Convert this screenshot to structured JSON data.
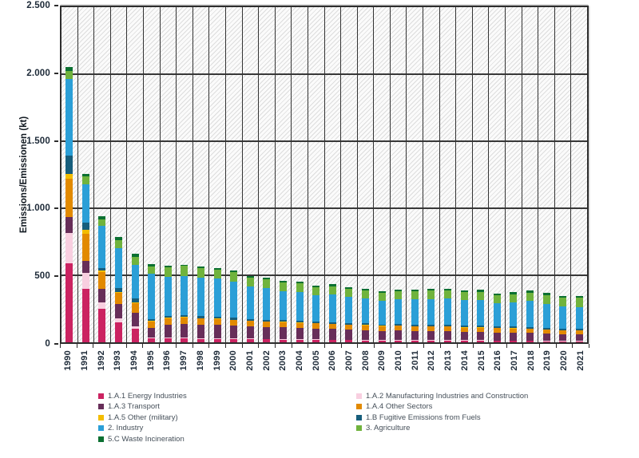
{
  "chart_data": {
    "type": "bar",
    "stacked": true,
    "title": "",
    "xlabel": "",
    "ylabel": "Emissions/Emissionen (kt)",
    "ylim": [
      0,
      2500
    ],
    "grid": "horizontal gridlines every 500 kt, vertical separator line per year, hatched plot background",
    "legend_position": "bottom, two columns",
    "yticks": [
      {
        "label": "0",
        "value": 0
      },
      {
        "label": "500",
        "value": 500
      },
      {
        "label": "1.000",
        "value": 1000
      },
      {
        "label": "1.500",
        "value": 1500
      },
      {
        "label": "2.000",
        "value": 2000
      },
      {
        "label": "2.500",
        "value": 2500
      }
    ],
    "categories": [
      "1990",
      "1991",
      "1992",
      "1993",
      "1994",
      "1995",
      "1996",
      "1997",
      "1998",
      "1999",
      "2000",
      "2001",
      "2002",
      "2003",
      "2004",
      "2005",
      "2006",
      "2007",
      "2008",
      "2009",
      "2010",
      "2011",
      "2012",
      "2013",
      "2014",
      "2015",
      "2016",
      "2017",
      "2018",
      "2019",
      "2020",
      "2021"
    ],
    "series": [
      {
        "name": "1.A.1 Energy Industries",
        "color": "#cb2361",
        "values": [
          588,
          400,
          250,
          147,
          100,
          32,
          30,
          28,
          26,
          25,
          24,
          22,
          21,
          20,
          18,
          17,
          16,
          15,
          14,
          13,
          13,
          12,
          12,
          12,
          11,
          11,
          10,
          10,
          10,
          9,
          8,
          8
        ]
      },
      {
        "name": "1.A.2 Manufacturing Industries and Construction",
        "color": "#f8cfe0",
        "values": [
          226,
          118,
          45,
          29,
          20,
          6,
          7,
          6,
          6,
          6,
          5,
          5,
          5,
          5,
          5,
          4,
          4,
          4,
          4,
          3,
          4,
          4,
          4,
          4,
          4,
          4,
          4,
          4,
          4,
          3,
          3,
          3
        ]
      },
      {
        "name": "1.A.3 Transport",
        "color": "#672e59",
        "values": [
          118,
          88,
          105,
          109,
          100,
          72,
          95,
          105,
          100,
          98,
          95,
          90,
          88,
          86,
          84,
          82,
          80,
          76,
          74,
          70,
          70,
          68,
          66,
          65,
          62,
          62,
          60,
          58,
          56,
          52,
          48,
          48
        ]
      },
      {
        "name": "1.A.4 Other Sectors",
        "color": "#e28a00",
        "values": [
          290,
          206,
          125,
          82,
          70,
          46,
          48,
          48,
          46,
          45,
          43,
          42,
          41,
          40,
          39,
          38,
          37,
          35,
          36,
          36,
          37,
          35,
          35,
          36,
          33,
          33,
          32,
          32,
          31,
          31,
          30,
          30
        ]
      },
      {
        "name": "1.A.5 Other (military)",
        "color": "#f3bd00",
        "values": [
          33,
          25,
          8,
          6,
          5,
          3,
          2,
          2,
          2,
          2,
          2,
          2,
          2,
          2,
          2,
          2,
          2,
          1,
          1,
          1,
          1,
          1,
          1,
          1,
          1,
          1,
          1,
          1,
          1,
          1,
          1,
          1
        ]
      },
      {
        "name": "1.B Fugitive Emissions from Fuels",
        "color": "#175e7c",
        "values": [
          137,
          59,
          19,
          35,
          30,
          16,
          15,
          16,
          15,
          14,
          14,
          13,
          13,
          13,
          12,
          12,
          12,
          12,
          12,
          11,
          12,
          12,
          12,
          12,
          12,
          12,
          12,
          12,
          12,
          12,
          11,
          11
        ]
      },
      {
        "name": "2. Industry",
        "color": "#2b9fd7",
        "values": [
          570,
          285,
          315,
          294,
          250,
          335,
          290,
          288,
          285,
          285,
          270,
          242,
          235,
          218,
          215,
          198,
          205,
          196,
          188,
          175,
          182,
          187,
          193,
          196,
          190,
          194,
          172,
          182,
          196,
          176,
          165,
          162
        ]
      },
      {
        "name": "3. Agriculture",
        "color": "#70b33d",
        "values": [
          60,
          55,
          53,
          60,
          60,
          57,
          70,
          78,
          72,
          70,
          70,
          68,
          68,
          65,
          64,
          61,
          62,
          60,
          60,
          60,
          60,
          60,
          62,
          62,
          60,
          61,
          60,
          61,
          62,
          68,
          68,
          68
        ]
      },
      {
        "name": "5.C Waste Incineration",
        "color": "#0b7031",
        "values": [
          33,
          19,
          20,
          23,
          25,
          15,
          12,
          9,
          11,
          12,
          12,
          12,
          12,
          12,
          12,
          12,
          14,
          13,
          13,
          13,
          13,
          13,
          13,
          14,
          13,
          14,
          12,
          13,
          14,
          15,
          13,
          13
        ]
      }
    ]
  }
}
